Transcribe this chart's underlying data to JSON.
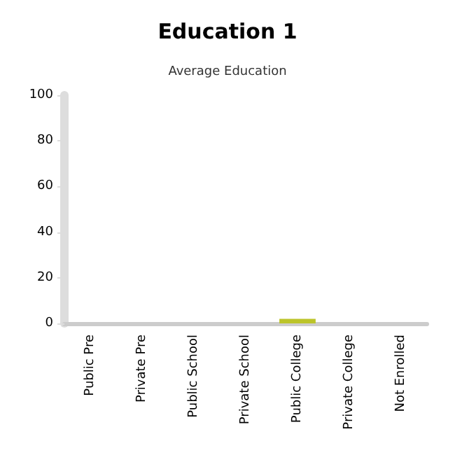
{
  "chart_data": {
    "type": "bar",
    "title": "Education 1",
    "subtitle": "Average Education",
    "categories": [
      "Public Pre",
      "Private Pre",
      "Public School",
      "Private School",
      "Public College",
      "Private College",
      "Not Enrolled"
    ],
    "values": [
      0,
      0,
      0,
      0,
      2,
      0,
      0
    ],
    "colors": [
      "#22a8c4",
      "#7a1518",
      "#175a32",
      "#c8672a",
      "#bcc42a",
      "#8f2a8a",
      "#a0a0a0"
    ],
    "ylim": [
      0,
      100
    ],
    "yticks": [
      0,
      20,
      40,
      60,
      80,
      100
    ],
    "grid": false
  }
}
